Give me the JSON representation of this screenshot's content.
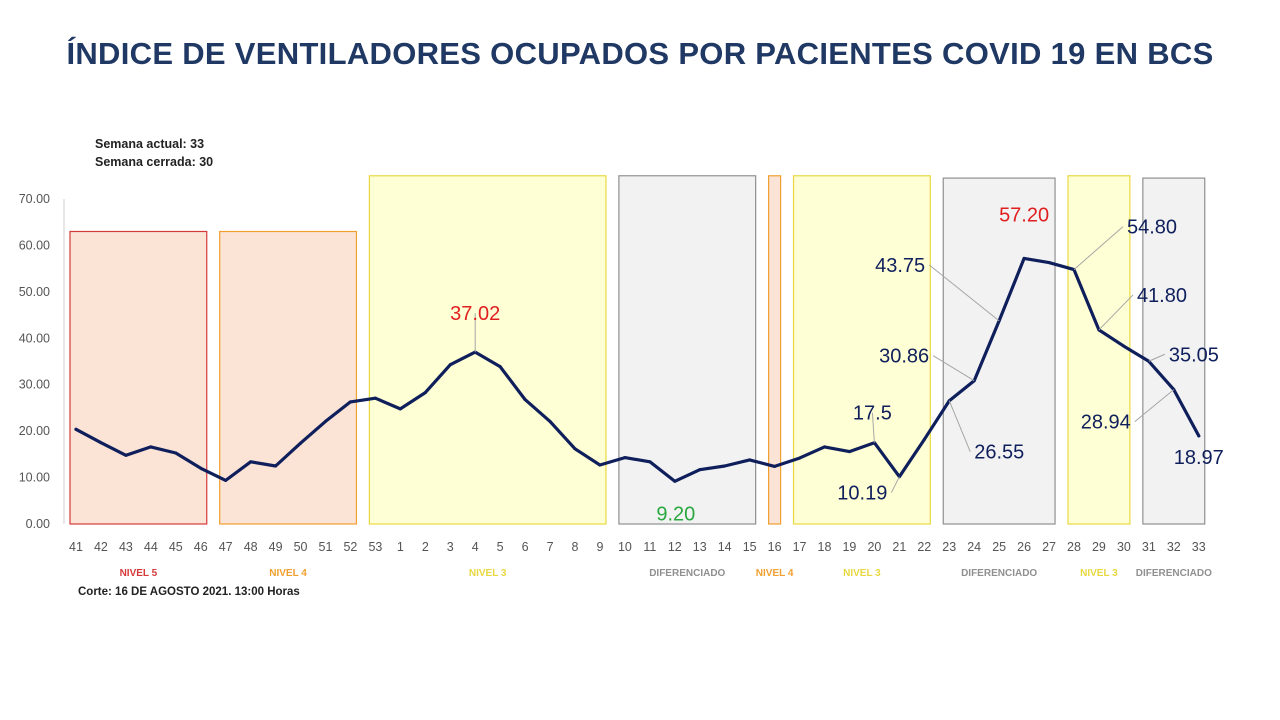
{
  "title": "ÍNDICE DE VENTILADORES OCUPADOS POR PACIENTES COVID 19 EN BCS",
  "notes": {
    "week_current": "Semana actual: 33",
    "week_closed": "Semana cerrada: 30",
    "cutoff": "Corte: 16 DE AGOSTO 2021. 13:00 Horas"
  },
  "colors": {
    "line": "#0f1f5c",
    "title": "#1f3864",
    "max_label": "#e02020",
    "min_label": "#2aa840",
    "nivel5": "#d43a3a",
    "nivel4": "#f0a030",
    "nivel3": "#e8d840",
    "diferenciado": "#909090"
  },
  "chart_data": {
    "type": "line",
    "ylim": [
      0,
      70
    ],
    "yticks": [
      "0.00",
      "10.00",
      "20.00",
      "30.00",
      "40.00",
      "50.00",
      "60.00",
      "70.00"
    ],
    "grid": false,
    "categories": [
      "41",
      "42",
      "43",
      "44",
      "45",
      "46",
      "47",
      "48",
      "49",
      "50",
      "51",
      "52",
      "53",
      "1",
      "2",
      "3",
      "4",
      "5",
      "6",
      "7",
      "8",
      "9",
      "10",
      "11",
      "12",
      "13",
      "14",
      "15",
      "16",
      "17",
      "18",
      "19",
      "20",
      "21",
      "22",
      "23",
      "24",
      "25",
      "26",
      "27",
      "28",
      "29",
      "30",
      "31",
      "32",
      "33"
    ],
    "series": [
      {
        "values": [
          20.4,
          17.5,
          14.8,
          16.6,
          15.3,
          12.0,
          9.4,
          13.4,
          12.5,
          17.4,
          22.1,
          26.3,
          27.1,
          24.8,
          28.3,
          34.3,
          37.02,
          33.9,
          26.8,
          22.1,
          16.2,
          12.7,
          14.3,
          13.4,
          9.2,
          11.7,
          12.5,
          13.8,
          12.4,
          14.2,
          16.6,
          15.6,
          17.5,
          10.19,
          18.2,
          26.55,
          30.86,
          43.75,
          57.2,
          56.3,
          54.8,
          41.8,
          38.3,
          35.05,
          28.94,
          18.97
        ]
      }
    ],
    "data_labels": [
      {
        "text": "37.02",
        "x": "4",
        "style": "max"
      },
      {
        "text": "9.20",
        "x": "12",
        "style": "min"
      },
      {
        "text": "57.20",
        "x": "26",
        "style": "max"
      },
      {
        "text": "17.5",
        "x": "20",
        "style": "normal"
      },
      {
        "text": "10.19",
        "x": "21",
        "style": "normal"
      },
      {
        "text": "30.86",
        "x": "24",
        "style": "normal"
      },
      {
        "text": "26.55",
        "x": "23",
        "style": "normal"
      },
      {
        "text": "43.75",
        "x": "25",
        "style": "normal"
      },
      {
        "text": "54.80",
        "x": "28",
        "style": "normal"
      },
      {
        "text": "41.80",
        "x": "29",
        "style": "normal"
      },
      {
        "text": "35.05",
        "x": "31",
        "style": "normal"
      },
      {
        "text": "28.94",
        "x": "32",
        "style": "normal"
      },
      {
        "text": "18.97",
        "x": "33",
        "style": "normal"
      }
    ],
    "zones": [
      {
        "label": "NIVEL 5",
        "from": "41",
        "to": "46",
        "level": "nivel5",
        "top": 63
      },
      {
        "label": "NIVEL 4",
        "from": "47",
        "to": "52",
        "level": "nivel4",
        "top": 63
      },
      {
        "label": "NIVEL 3",
        "from": "53",
        "to": "9",
        "level": "nivel3",
        "top": 75
      },
      {
        "label": "DIFERENCIADO",
        "from": "10",
        "to": "15",
        "level": "diferenciado",
        "top": 75
      },
      {
        "label": "NIVEL 4",
        "from": "16",
        "to": "16",
        "level": "nivel4",
        "top": 75
      },
      {
        "label": "NIVEL 3",
        "from": "17",
        "to": "22",
        "level": "nivel3",
        "top": 75
      },
      {
        "label": "DIFERENCIADO",
        "from": "23",
        "to": "27",
        "level": "diferenciado",
        "top": 74.5
      },
      {
        "label": "NIVEL 3",
        "from": "28",
        "to": "30",
        "level": "nivel3",
        "top": 75
      },
      {
        "label": "DIFERENCIADO",
        "from": "31",
        "to": "33",
        "level": "diferenciado",
        "top": 74.5
      }
    ]
  }
}
